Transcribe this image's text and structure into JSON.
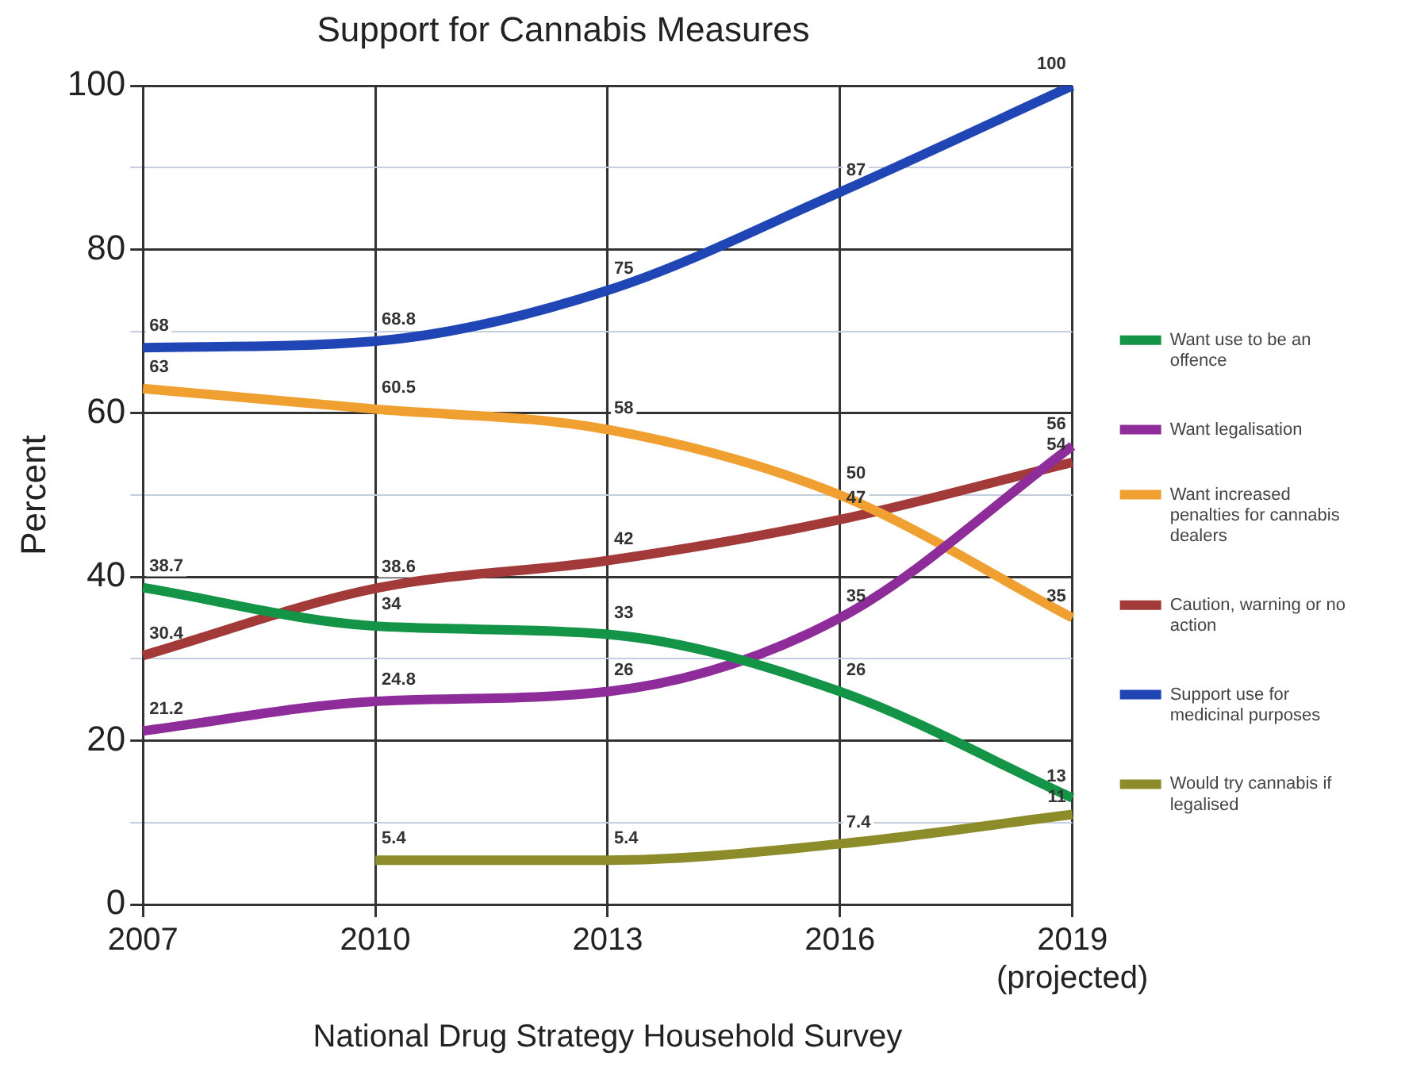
{
  "chart_data": {
    "type": "line",
    "title": "Support for Cannabis Measures",
    "xlabel": "National Drug Strategy Household Survey",
    "ylabel": "Percent",
    "categories": [
      "2007",
      "2010",
      "2013",
      "2016",
      "2019\n(projected)"
    ],
    "series": [
      {
        "name": "Want use to be an offence",
        "color": "#139447",
        "values": [
          38.7,
          34,
          33,
          26,
          13
        ]
      },
      {
        "name": "Want legalisation",
        "color": "#8e2c9a",
        "values": [
          21.2,
          24.8,
          26,
          35,
          56
        ]
      },
      {
        "name": "Want increased penalties for cannabis dealers",
        "color": "#f0a030",
        "values": [
          63,
          60.5,
          58,
          50,
          35
        ]
      },
      {
        "name": "Caution, warning or no action",
        "color": "#a33a3a",
        "values": [
          30.4,
          38.6,
          42,
          47,
          54
        ]
      },
      {
        "name": "Support use for medicinal purposes",
        "color": "#1f46b4",
        "values": [
          68,
          68.8,
          75,
          87,
          100
        ]
      },
      {
        "name": "Would try cannabis if legalised",
        "color": "#8c8c2a",
        "values": [
          null,
          5.4,
          5.4,
          7.4,
          11
        ]
      }
    ],
    "ylim": [
      0,
      100
    ],
    "yticks": [
      0,
      {
        "value": 10,
        "label": null
      },
      20,
      {
        "value": 30,
        "label": null
      },
      40,
      {
        "value": 50,
        "label": null
      },
      60,
      {
        "value": 70,
        "label": null
      },
      80,
      {
        "value": 90,
        "label": null
      },
      100
    ],
    "grid": true,
    "legend": "right",
    "data_labels": true,
    "marker": "none",
    "line_style": "solid"
  }
}
